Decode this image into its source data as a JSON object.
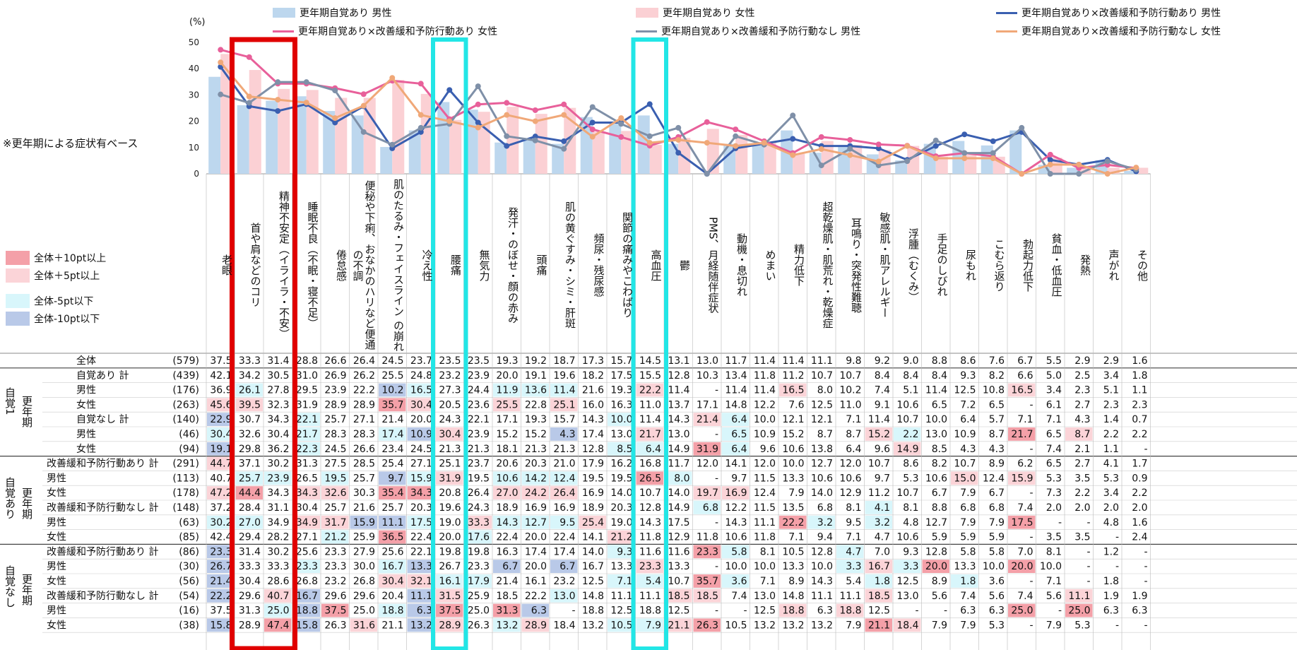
{
  "unit_label": "(%)",
  "note": "※更年期による症状有ベース",
  "key": [
    {
      "label": "全体＋10pt以上",
      "color": "#f4a0a8"
    },
    {
      "label": "全体＋5pt以上",
      "color": "#fbd4d8"
    },
    {
      "label": "全体-5pt以下",
      "color": "#d8f6fb"
    },
    {
      "label": "全体-10pt以下",
      "color": "#b9c9e8"
    }
  ],
  "legend": [
    {
      "label": "更年期自覚あり 男性",
      "kind": "bar",
      "color": "#bdd7ee"
    },
    {
      "label": "更年期自覚あり 女性",
      "kind": "bar",
      "color": "#fbd0d4"
    },
    {
      "label": "更年期自覚あり×改善緩和予防行動あり 男性",
      "kind": "line",
      "color": "#3a5fb0"
    },
    {
      "label": "更年期自覚あり×改善緩和予防行動あり 女性",
      "kind": "line",
      "color": "#e8609a"
    },
    {
      "label": "更年期自覚あり×改善緩和予防行動なし 男性",
      "kind": "line",
      "color": "#7f90a8"
    },
    {
      "label": "更年期自覚あり×改善緩和予防行動なし 女性",
      "kind": "line",
      "color": "#f0a878"
    }
  ],
  "groups": {
    "g1": "更年期",
    "g1b": "自覚1",
    "g2": "自覚あり",
    "g2b": "更年期",
    "g3": "自覚なし",
    "g3b": "更年期"
  },
  "chart_data": {
    "type": "bar",
    "ylim": [
      0,
      50
    ],
    "yticks": [
      "0",
      "10",
      "20",
      "30",
      "40",
      "50"
    ],
    "categories": [
      "老眼",
      "首や肩などのコリ",
      "精神不安定（イライラ・不安）",
      "睡眠不良（不眠・寝不足）",
      "倦怠感",
      "便秘や下痢、おなかのハリなど便通の不調",
      "肌のたるみ・フェイスライン の崩れ",
      "冷え性",
      "腰痛",
      "無気力",
      "発汗・のぼせ・顔の赤み",
      "頭痛",
      "肌の黄ぐすみ・シミ・肝斑",
      "頻尿・残尿感",
      "関節の痛みやこわばり",
      "高血圧",
      "鬱",
      "PMS、月経随伴症状",
      "動機・息切れ",
      "めまい",
      "精力低下",
      "超乾燥肌・肌荒れ・乾燥症",
      "耳鳴り・突発性難聴",
      "敏感肌・肌アレルギー",
      "浮腫（むくみ）",
      "手足のしびれ",
      "尿もれ",
      "こむら返り",
      "勃起力低下",
      "貧血・低血圧",
      "発熱",
      "声がれ",
      "その他"
    ],
    "series": [
      {
        "name": "更年期自覚あり 男性",
        "kind": "bar",
        "values": [
          36.9,
          26.1,
          27.8,
          29.5,
          23.9,
          22.2,
          10.2,
          16.5,
          27.3,
          24.4,
          11.9,
          13.6,
          11.4,
          21.6,
          19.3,
          22.2,
          11.4,
          null,
          11.4,
          11.4,
          16.5,
          8.0,
          10.2,
          7.4,
          5.1,
          11.4,
          12.5,
          10.8,
          16.5,
          3.4,
          2.3,
          5.1,
          1.1
        ]
      },
      {
        "name": "更年期自覚あり 女性",
        "kind": "bar",
        "values": [
          45.6,
          39.5,
          32.3,
          31.9,
          28.9,
          28.9,
          35.7,
          30.4,
          20.5,
          23.6,
          25.5,
          22.8,
          25.1,
          16.0,
          16.3,
          11.0,
          13.7,
          17.1,
          14.8,
          12.2,
          7.6,
          12.5,
          11.0,
          9.1,
          10.6,
          6.5,
          7.2,
          6.5,
          null,
          6.1,
          2.7,
          2.3,
          2.3
        ]
      },
      {
        "name": "更年期自覚あり×改善緩和予防行動あり 男性",
        "kind": "line",
        "values": [
          40.7,
          25.7,
          23.9,
          26.5,
          19.5,
          25.7,
          9.7,
          15.9,
          31.9,
          19.5,
          10.6,
          14.2,
          12.4,
          19.5,
          19.5,
          26.5,
          8.0,
          null,
          9.7,
          11.5,
          13.3,
          10.6,
          10.6,
          9.7,
          5.3,
          10.6,
          15.0,
          12.4,
          15.9,
          5.3,
          3.5,
          5.3,
          0.9
        ]
      },
      {
        "name": "更年期自覚あり×改善緩和予防行動あり 女性",
        "kind": "line",
        "values": [
          47.2,
          44.4,
          34.3,
          34.3,
          32.6,
          30.3,
          35.4,
          34.3,
          20.8,
          26.4,
          27.0,
          24.2,
          26.4,
          16.9,
          14.0,
          10.7,
          14.0,
          19.7,
          16.9,
          12.4,
          7.9,
          14.0,
          12.9,
          11.2,
          10.7,
          6.7,
          7.9,
          6.7,
          null,
          7.3,
          2.2,
          3.4,
          2.2
        ]
      },
      {
        "name": "更年期自覚あり×改善緩和予防行動なし 男性",
        "kind": "line",
        "values": [
          30.2,
          27.0,
          34.9,
          34.9,
          31.7,
          15.9,
          11.1,
          17.5,
          19.0,
          33.3,
          14.3,
          12.7,
          9.5,
          25.4,
          19.0,
          14.3,
          17.5,
          null,
          14.3,
          11.1,
          22.2,
          3.2,
          9.5,
          3.2,
          4.8,
          12.7,
          7.9,
          7.9,
          17.5,
          null,
          null,
          4.8,
          1.6
        ]
      },
      {
        "name": "更年期自覚あり×改善緩和予防行動なし 女性",
        "kind": "line",
        "values": [
          42.4,
          29.4,
          28.2,
          27.1,
          21.2,
          25.9,
          36.5,
          22.4,
          20.0,
          17.6,
          22.4,
          20.0,
          22.4,
          14.1,
          21.2,
          11.8,
          12.9,
          11.8,
          10.6,
          11.8,
          7.1,
          9.4,
          7.1,
          4.7,
          10.6,
          5.9,
          5.9,
          5.9,
          null,
          3.5,
          3.5,
          null,
          2.4
        ]
      }
    ]
  },
  "table": {
    "rows": [
      {
        "label": "全体",
        "n": "(579)",
        "vals": [
          "37.5",
          "33.3",
          "31.4",
          "28.8",
          "26.6",
          "26.4",
          "24.5",
          "23.7",
          "23.5",
          "23.5",
          "19.3",
          "19.2",
          "18.7",
          "17.3",
          "15.7",
          "14.5",
          "13.1",
          "13.0",
          "11.7",
          "11.4",
          "11.4",
          "11.1",
          "9.8",
          "9.2",
          "9.0",
          "8.8",
          "8.6",
          "7.6",
          "6.7",
          "5.5",
          "2.9",
          "2.9",
          "1.6"
        ]
      },
      {
        "label": "自覚あり 計",
        "n": "(439)",
        "vals": [
          "42.1",
          "34.2",
          "30.5",
          "31.0",
          "26.9",
          "26.2",
          "25.5",
          "24.8",
          "23.2",
          "23.9",
          "20.0",
          "19.1",
          "19.6",
          "18.2",
          "17.5",
          "15.5",
          "12.8",
          "10.3",
          "13.4",
          "11.8",
          "11.2",
          "10.7",
          "10.7",
          "8.4",
          "8.4",
          "8.4",
          "9.3",
          "8.2",
          "6.6",
          "5.0",
          "2.5",
          "3.4",
          "1.8"
        ]
      },
      {
        "label": "男性",
        "n": "(176)",
        "vals": [
          "36.9",
          "26.1",
          "27.8",
          "29.5",
          "23.9",
          "22.2",
          "10.2",
          "16.5",
          "27.3",
          "24.4",
          "11.9",
          "13.6",
          "11.4",
          "21.6",
          "19.3",
          "22.2",
          "11.4",
          "-",
          "11.4",
          "11.4",
          "16.5",
          "8.0",
          "10.2",
          "7.4",
          "5.1",
          "11.4",
          "12.5",
          "10.8",
          "16.5",
          "3.4",
          "2.3",
          "5.1",
          "1.1"
        ]
      },
      {
        "label": "女性",
        "n": "(263)",
        "vals": [
          "45.6",
          "39.5",
          "32.3",
          "31.9",
          "28.9",
          "28.9",
          "35.7",
          "30.4",
          "20.5",
          "23.6",
          "25.5",
          "22.8",
          "25.1",
          "16.0",
          "16.3",
          "11.0",
          "13.7",
          "17.1",
          "14.8",
          "12.2",
          "7.6",
          "12.5",
          "11.0",
          "9.1",
          "10.6",
          "6.5",
          "7.2",
          "6.5",
          "-",
          "6.1",
          "2.7",
          "2.3",
          "2.3"
        ]
      },
      {
        "label": "自覚なし 計",
        "n": "(140)",
        "vals": [
          "22.9",
          "30.7",
          "34.3",
          "22.1",
          "25.7",
          "27.1",
          "21.4",
          "20.0",
          "24.3",
          "22.1",
          "17.1",
          "19.3",
          "15.7",
          "14.3",
          "10.0",
          "11.4",
          "14.3",
          "21.4",
          "6.4",
          "10.0",
          "12.1",
          "12.1",
          "7.1",
          "11.4",
          "10.7",
          "10.0",
          "6.4",
          "5.7",
          "7.1",
          "7.1",
          "4.3",
          "1.4",
          "0.7"
        ]
      },
      {
        "label": "男性",
        "n": "(46)",
        "vals": [
          "30.4",
          "32.6",
          "30.4",
          "21.7",
          "28.3",
          "28.3",
          "17.4",
          "10.9",
          "30.4",
          "23.9",
          "15.2",
          "15.2",
          "4.3",
          "17.4",
          "13.0",
          "21.7",
          "13.0",
          "-",
          "6.5",
          "10.9",
          "15.2",
          "8.7",
          "8.7",
          "15.2",
          "2.2",
          "13.0",
          "10.9",
          "8.7",
          "21.7",
          "6.5",
          "8.7",
          "2.2",
          "2.2"
        ]
      },
      {
        "label": "女性",
        "n": "(94)",
        "vals": [
          "19.1",
          "29.8",
          "36.2",
          "22.3",
          "24.5",
          "26.6",
          "23.4",
          "24.5",
          "21.3",
          "21.3",
          "18.1",
          "21.3",
          "21.3",
          "12.8",
          "8.5",
          "6.4",
          "14.9",
          "31.9",
          "6.4",
          "9.6",
          "10.6",
          "13.8",
          "6.4",
          "9.6",
          "14.9",
          "8.5",
          "4.3",
          "4.3",
          "-",
          "7.4",
          "2.1",
          "1.1",
          "-"
        ]
      },
      {
        "label": "改善緩和予防行動あり 計",
        "n": "(291)",
        "vals": [
          "44.7",
          "37.1",
          "30.2",
          "31.3",
          "27.5",
          "28.5",
          "25.4",
          "27.1",
          "25.1",
          "23.7",
          "20.6",
          "20.3",
          "21.0",
          "17.9",
          "16.2",
          "16.8",
          "11.7",
          "12.0",
          "14.1",
          "12.0",
          "10.0",
          "12.7",
          "12.0",
          "10.7",
          "8.6",
          "8.2",
          "10.7",
          "8.9",
          "6.2",
          "6.5",
          "2.7",
          "4.1",
          "1.7"
        ]
      },
      {
        "label": "男性",
        "n": "(113)",
        "vals": [
          "40.7",
          "25.7",
          "23.9",
          "26.5",
          "19.5",
          "25.7",
          "9.7",
          "15.9",
          "31.9",
          "19.5",
          "10.6",
          "14.2",
          "12.4",
          "19.5",
          "19.5",
          "26.5",
          "8.0",
          "-",
          "9.7",
          "11.5",
          "13.3",
          "10.6",
          "10.6",
          "9.7",
          "5.3",
          "10.6",
          "15.0",
          "12.4",
          "15.9",
          "5.3",
          "3.5",
          "5.3",
          "0.9"
        ]
      },
      {
        "label": "女性",
        "n": "(178)",
        "vals": [
          "47.2",
          "44.4",
          "34.3",
          "34.3",
          "32.6",
          "30.3",
          "35.4",
          "34.3",
          "20.8",
          "26.4",
          "27.0",
          "24.2",
          "26.4",
          "16.9",
          "14.0",
          "10.7",
          "14.0",
          "19.7",
          "16.9",
          "12.4",
          "7.9",
          "14.0",
          "12.9",
          "11.2",
          "10.7",
          "6.7",
          "7.9",
          "6.7",
          "-",
          "7.3",
          "2.2",
          "3.4",
          "2.2"
        ]
      },
      {
        "label": "改善緩和予防行動なし 計",
        "n": "(148)",
        "vals": [
          "37.2",
          "28.4",
          "31.1",
          "30.4",
          "25.7",
          "21.6",
          "25.7",
          "20.3",
          "19.6",
          "24.3",
          "18.9",
          "16.9",
          "16.9",
          "18.9",
          "20.3",
          "12.8",
          "14.9",
          "6.8",
          "12.2",
          "11.5",
          "13.5",
          "6.8",
          "8.1",
          "4.1",
          "8.1",
          "8.8",
          "6.8",
          "6.8",
          "7.4",
          "2.0",
          "2.0",
          "2.0",
          "2.0"
        ]
      },
      {
        "label": "男性",
        "n": "(63)",
        "vals": [
          "30.2",
          "27.0",
          "34.9",
          "34.9",
          "31.7",
          "15.9",
          "11.1",
          "17.5",
          "19.0",
          "33.3",
          "14.3",
          "12.7",
          "9.5",
          "25.4",
          "19.0",
          "14.3",
          "17.5",
          "-",
          "14.3",
          "11.1",
          "22.2",
          "3.2",
          "9.5",
          "3.2",
          "4.8",
          "12.7",
          "7.9",
          "7.9",
          "17.5",
          "-",
          "-",
          "4.8",
          "1.6"
        ]
      },
      {
        "label": "女性",
        "n": "(85)",
        "vals": [
          "42.4",
          "29.4",
          "28.2",
          "27.1",
          "21.2",
          "25.9",
          "36.5",
          "22.4",
          "20.0",
          "17.6",
          "22.4",
          "20.0",
          "22.4",
          "14.1",
          "21.2",
          "11.8",
          "12.9",
          "11.8",
          "10.6",
          "11.8",
          "7.1",
          "9.4",
          "7.1",
          "4.7",
          "10.6",
          "5.9",
          "5.9",
          "5.9",
          "-",
          "3.5",
          "3.5",
          "-",
          "2.4"
        ]
      },
      {
        "label": "改善緩和予防行動あり 計",
        "n": "(86)",
        "vals": [
          "23.3",
          "31.4",
          "30.2",
          "25.6",
          "23.3",
          "27.9",
          "25.6",
          "22.1",
          "19.8",
          "19.8",
          "16.3",
          "17.4",
          "17.4",
          "14.0",
          "9.3",
          "11.6",
          "11.6",
          "23.3",
          "5.8",
          "8.1",
          "10.5",
          "12.8",
          "4.7",
          "7.0",
          "9.3",
          "12.8",
          "5.8",
          "5.8",
          "7.0",
          "8.1",
          "-",
          "1.2",
          "-"
        ]
      },
      {
        "label": "男性",
        "n": "(30)",
        "vals": [
          "26.7",
          "33.3",
          "33.3",
          "23.3",
          "23.3",
          "30.0",
          "16.7",
          "13.3",
          "26.7",
          "23.3",
          "6.7",
          "20.0",
          "6.7",
          "16.7",
          "13.3",
          "23.3",
          "13.3",
          "-",
          "10.0",
          "10.0",
          "13.3",
          "10.0",
          "3.3",
          "16.7",
          "3.3",
          "20.0",
          "13.3",
          "10.0",
          "20.0",
          "10.0",
          "-",
          "-",
          "-"
        ]
      },
      {
        "label": "女性",
        "n": "(56)",
        "vals": [
          "21.4",
          "30.4",
          "28.6",
          "26.8",
          "23.2",
          "26.8",
          "30.4",
          "32.1",
          "16.1",
          "17.9",
          "21.4",
          "16.1",
          "23.2",
          "12.5",
          "7.1",
          "5.4",
          "10.7",
          "35.7",
          "3.6",
          "7.1",
          "8.9",
          "14.3",
          "5.4",
          "1.8",
          "12.5",
          "8.9",
          "1.8",
          "3.6",
          "-",
          "7.1",
          "-",
          "1.8",
          "-"
        ]
      },
      {
        "label": "改善緩和予防行動なし 計",
        "n": "(54)",
        "vals": [
          "22.2",
          "29.6",
          "40.7",
          "16.7",
          "29.6",
          "29.6",
          "20.4",
          "11.1",
          "31.5",
          "25.9",
          "18.5",
          "22.2",
          "13.0",
          "14.8",
          "11.1",
          "11.1",
          "18.5",
          "18.5",
          "7.4",
          "13.0",
          "14.8",
          "11.1",
          "11.1",
          "18.5",
          "13.0",
          "5.6",
          "7.4",
          "5.6",
          "7.4",
          "5.6",
          "11.1",
          "1.9",
          "1.9"
        ]
      },
      {
        "label": "男性",
        "n": "(16)",
        "vals": [
          "37.5",
          "31.3",
          "25.0",
          "18.8",
          "37.5",
          "25.0",
          "18.8",
          "6.3",
          "37.5",
          "25.0",
          "31.3",
          "6.3",
          "-",
          "18.8",
          "12.5",
          "18.8",
          "12.5",
          "-",
          "-",
          "12.5",
          "18.8",
          "6.3",
          "18.8",
          "12.5",
          "-",
          "-",
          "6.3",
          "6.3",
          "25.0",
          "-",
          "25.0",
          "6.3",
          "6.3"
        ]
      },
      {
        "label": "女性",
        "n": "(38)",
        "vals": [
          "15.8",
          "28.9",
          "47.4",
          "15.8",
          "26.3",
          "31.6",
          "21.1",
          "13.2",
          "28.9",
          "26.3",
          "13.2",
          "28.9",
          "18.4",
          "13.2",
          "10.5",
          "7.9",
          "21.1",
          "26.3",
          "10.5",
          "13.2",
          "13.2",
          "13.2",
          "7.9",
          "21.1",
          "18.4",
          "7.9",
          "7.9",
          "5.3",
          "-",
          "7.9",
          "5.3",
          "-",
          "-"
        ]
      }
    ]
  }
}
